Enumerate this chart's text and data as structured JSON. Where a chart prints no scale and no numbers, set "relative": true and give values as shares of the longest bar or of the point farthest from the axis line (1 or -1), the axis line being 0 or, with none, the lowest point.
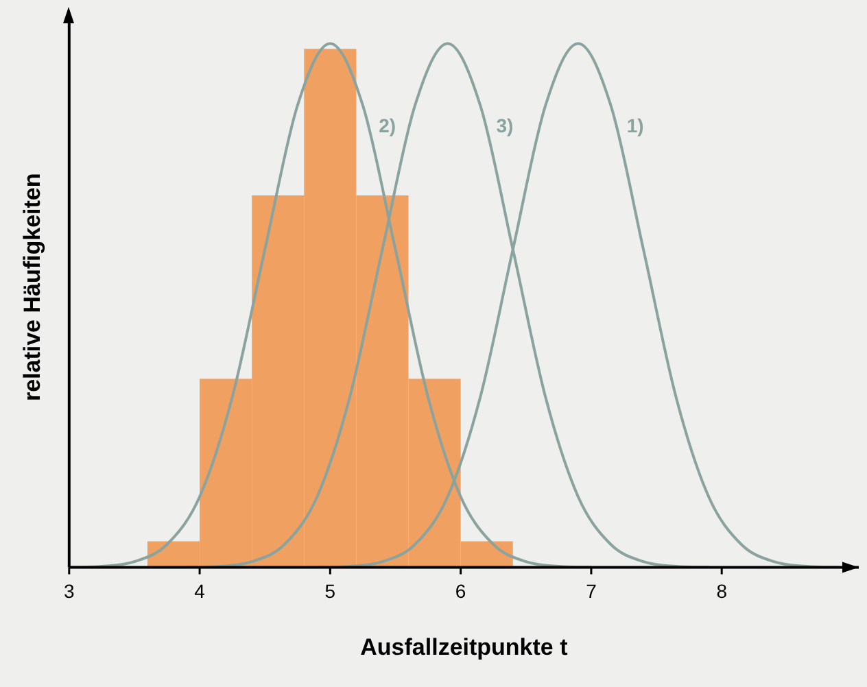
{
  "chart_data": {
    "type": "histogram",
    "relative": true,
    "xlabel": "Ausfallzeitpunkte t",
    "ylabel": "relative Häufigkeiten",
    "xlim": [
      3,
      9.05
    ],
    "xticks": [
      3,
      4,
      5,
      6,
      7,
      8
    ],
    "grid": false,
    "legend": false,
    "marker": "none",
    "line_style": "solid",
    "series": [
      {
        "color": "#f0a060",
        "bins": [
          3.6,
          4.0,
          4.4,
          4.8,
          5.2,
          5.6,
          6.0,
          6.4
        ],
        "values": [
          0.05,
          0.36,
          0.71,
          0.99,
          0.71,
          0.36,
          0.05
        ]
      },
      {
        "type": "line",
        "name": "2)",
        "color": "#8aa39f",
        "x": [
          3.0,
          3.25,
          3.5,
          3.75,
          4.0,
          4.25,
          4.5,
          4.75,
          5.0,
          5.25,
          5.5,
          5.75,
          6.0,
          6.25,
          6.5,
          6.75,
          7.0
        ],
        "values": [
          0.0003,
          0.002,
          0.011,
          0.044,
          0.135,
          0.325,
          0.607,
          0.882,
          1,
          0.882,
          0.607,
          0.325,
          0.135,
          0.044,
          0.011,
          0.002,
          0.0003
        ]
      },
      {
        "type": "line",
        "name": "3)",
        "color": "#8aa39f",
        "x": [
          3.9,
          4.15,
          4.4,
          4.65,
          4.9,
          5.15,
          5.4,
          5.65,
          5.9,
          6.15,
          6.4,
          6.65,
          6.9,
          7.15,
          7.4,
          7.65,
          7.9
        ],
        "values": [
          0.0003,
          0.002,
          0.011,
          0.044,
          0.135,
          0.325,
          0.607,
          0.882,
          1,
          0.882,
          0.607,
          0.325,
          0.135,
          0.044,
          0.011,
          0.002,
          0.0003
        ]
      },
      {
        "type": "line",
        "name": "1)",
        "color": "#8aa39f",
        "x": [
          4.9,
          5.15,
          5.4,
          5.65,
          5.9,
          6.15,
          6.4,
          6.65,
          6.9,
          7.15,
          7.4,
          7.65,
          7.9,
          8.15,
          8.4,
          8.65,
          8.9
        ],
        "values": [
          0.0003,
          0.002,
          0.011,
          0.044,
          0.135,
          0.325,
          0.607,
          0.882,
          1,
          0.882,
          0.607,
          0.325,
          0.135,
          0.044,
          0.011,
          0.002,
          0.0003
        ]
      }
    ]
  }
}
